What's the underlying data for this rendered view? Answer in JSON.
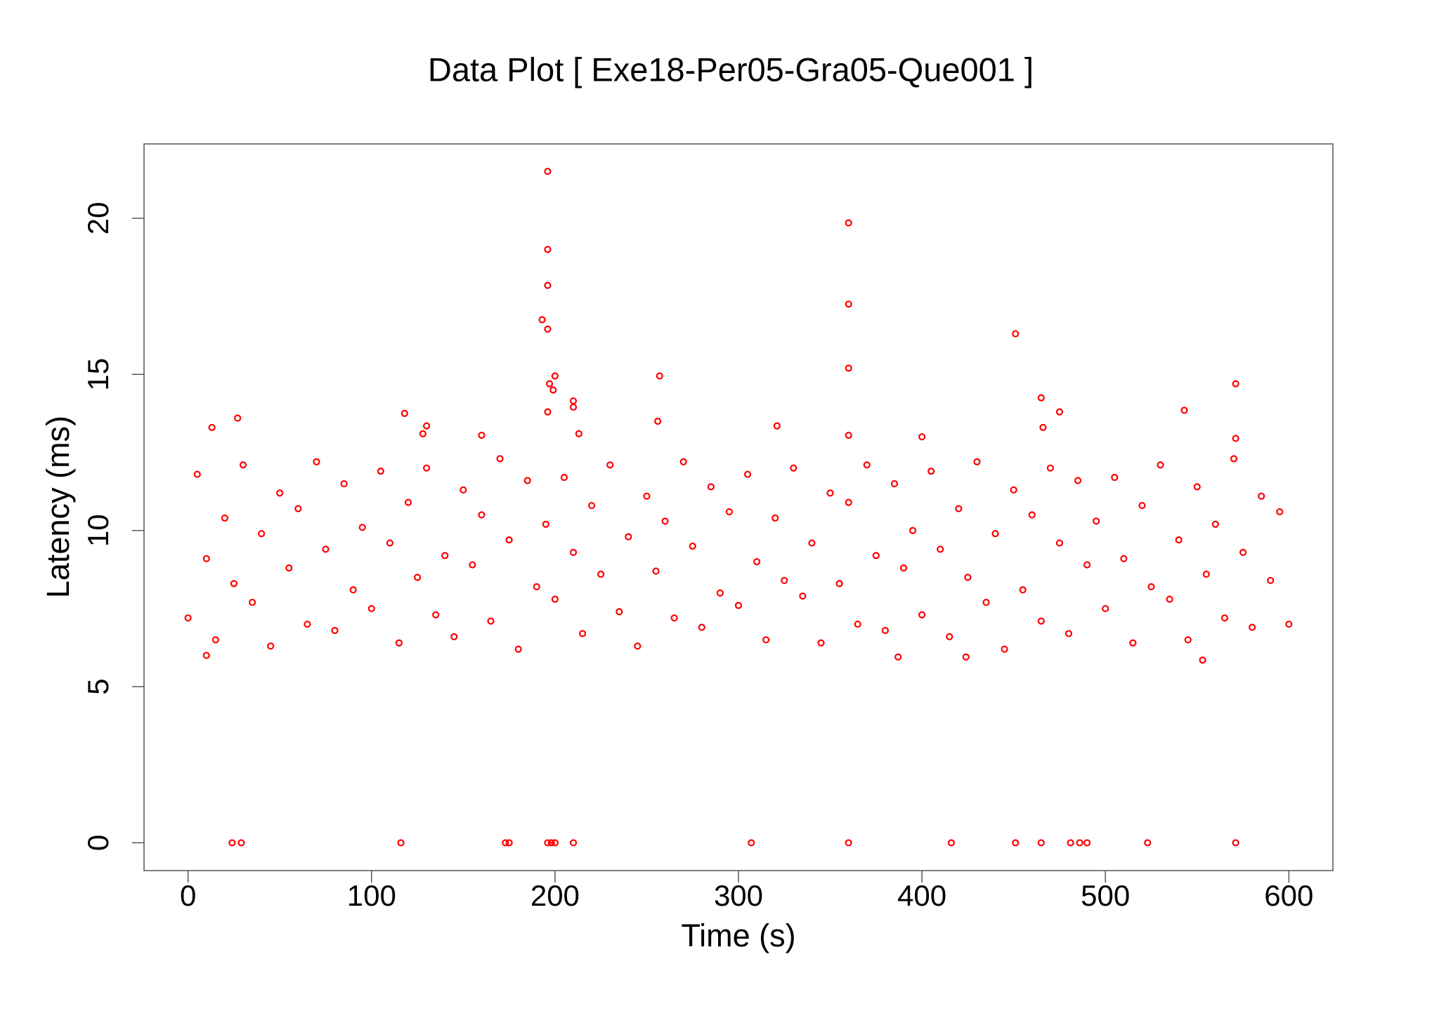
{
  "chart_data": {
    "type": "scatter",
    "title": "Data Plot [ Exe18-Per05-Gra05-Que001 ]",
    "x_label": "Time (s)",
    "y_label": "Latency (ms)",
    "color": "#ff0000",
    "xlim": [
      -24,
      624
    ],
    "ylim": [
      -0.89,
      22.38
    ],
    "xticks": [
      0,
      100,
      200,
      300,
      400,
      500,
      600
    ],
    "yticks": [
      0,
      5,
      10,
      15,
      20
    ],
    "x": [
      0,
      5,
      10,
      15,
      20,
      25,
      30,
      35,
      40,
      45,
      50,
      55,
      60,
      65,
      70,
      75,
      80,
      85,
      90,
      95,
      100,
      105,
      110,
      115,
      120,
      125,
      130,
      135,
      140,
      145,
      150,
      155,
      160,
      165,
      170,
      175,
      180,
      185,
      190,
      195,
      200,
      205,
      210,
      215,
      220,
      225,
      230,
      235,
      240,
      245,
      250,
      255,
      260,
      265,
      270,
      275,
      280,
      285,
      290,
      295,
      300,
      305,
      310,
      315,
      320,
      325,
      330,
      335,
      340,
      345,
      350,
      355,
      360,
      365,
      370,
      375,
      380,
      385,
      390,
      395,
      400,
      405,
      410,
      415,
      420,
      425,
      430,
      435,
      440,
      445,
      450,
      455,
      460,
      465,
      470,
      475,
      480,
      485,
      490,
      495,
      500,
      505,
      510,
      515,
      520,
      525,
      530,
      535,
      540,
      545,
      550,
      555,
      560,
      565,
      570,
      575,
      580,
      585,
      590,
      595,
      600,
      196,
      360,
      196,
      196,
      360,
      193,
      196,
      451,
      360,
      200,
      257,
      197,
      199,
      571,
      210,
      210,
      465,
      196,
      118,
      475,
      543,
      27,
      13,
      130,
      256,
      321,
      466,
      360,
      213,
      400,
      571,
      160,
      128,
      24,
      29,
      116,
      173,
      175,
      196,
      198,
      200,
      210,
      307,
      360,
      416,
      451,
      465,
      481,
      486,
      490,
      523,
      571,
      10,
      553,
      387,
      424
    ],
    "y": [
      7.2,
      11.8,
      9.1,
      6.5,
      10.4,
      8.3,
      12.1,
      7.7,
      9.9,
      6.3,
      11.2,
      8.8,
      10.7,
      7.0,
      12.2,
      9.4,
      6.8,
      11.5,
      8.1,
      10.1,
      7.5,
      11.9,
      9.6,
      6.4,
      10.9,
      8.5,
      12.0,
      7.3,
      9.2,
      6.6,
      11.3,
      8.9,
      10.5,
      7.1,
      12.3,
      9.7,
      6.2,
      11.6,
      8.2,
      10.2,
      7.8,
      11.7,
      9.3,
      6.7,
      10.8,
      8.6,
      12.1,
      7.4,
      9.8,
      6.3,
      11.1,
      8.7,
      10.3,
      7.2,
      12.2,
      9.5,
      6.9,
      11.4,
      8.0,
      10.6,
      7.6,
      11.8,
      9.0,
      6.5,
      10.4,
      8.4,
      12.0,
      7.9,
      9.6,
      6.4,
      11.2,
      8.3,
      10.9,
      7.0,
      12.1,
      9.2,
      6.8,
      11.5,
      8.8,
      10.0,
      7.3,
      11.9,
      9.4,
      6.6,
      10.7,
      8.5,
      12.2,
      7.7,
      9.9,
      6.2,
      11.3,
      8.1,
      10.5,
      7.1,
      12.0,
      9.6,
      6.7,
      11.6,
      8.9,
      10.3,
      7.5,
      11.7,
      9.1,
      6.4,
      10.8,
      8.2,
      12.1,
      7.8,
      9.7,
      6.5,
      11.4,
      8.6,
      10.2,
      7.2,
      12.3,
      9.3,
      6.9,
      11.1,
      8.4,
      10.6,
      7.0,
      21.5,
      19.85,
      19,
      17.85,
      17.25,
      16.75,
      16.45,
      16.3,
      15.2,
      14.95,
      14.95,
      14.7,
      14.5,
      14.7,
      14.15,
      13.95,
      14.25,
      13.8,
      13.75,
      13.8,
      13.85,
      13.6,
      13.3,
      13.35,
      13.5,
      13.35,
      13.3,
      13.05,
      13.1,
      13,
      12.95,
      13.05,
      13.1,
      0,
      0,
      0,
      0,
      0,
      0,
      0,
      0,
      0,
      0,
      0,
      0,
      0,
      0,
      0,
      0,
      0,
      0,
      0,
      6.0,
      5.85,
      5.95,
      5.95
    ]
  }
}
